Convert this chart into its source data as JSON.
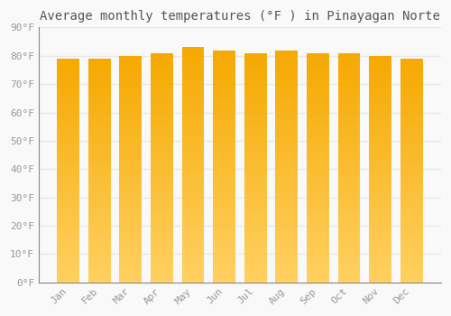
{
  "title": "Average monthly temperatures (°F ) in Pinayagan Norte",
  "months": [
    "Jan",
    "Feb",
    "Mar",
    "Apr",
    "May",
    "Jun",
    "Jul",
    "Aug",
    "Sep",
    "Oct",
    "Nov",
    "Dec"
  ],
  "values": [
    79,
    79,
    80,
    81,
    83,
    82,
    81,
    82,
    81,
    81,
    80,
    79
  ],
  "bar_color_top": "#F5A800",
  "bar_color_bottom": "#FFD060",
  "ylim": [
    0,
    90
  ],
  "yticks": [
    0,
    10,
    20,
    30,
    40,
    50,
    60,
    70,
    80,
    90
  ],
  "background_color": "#f9f9f9",
  "grid_color": "#e8e8e8",
  "title_fontsize": 10,
  "tick_fontsize": 8,
  "tick_color": "#999999",
  "title_color": "#555555",
  "bar_width": 0.72
}
